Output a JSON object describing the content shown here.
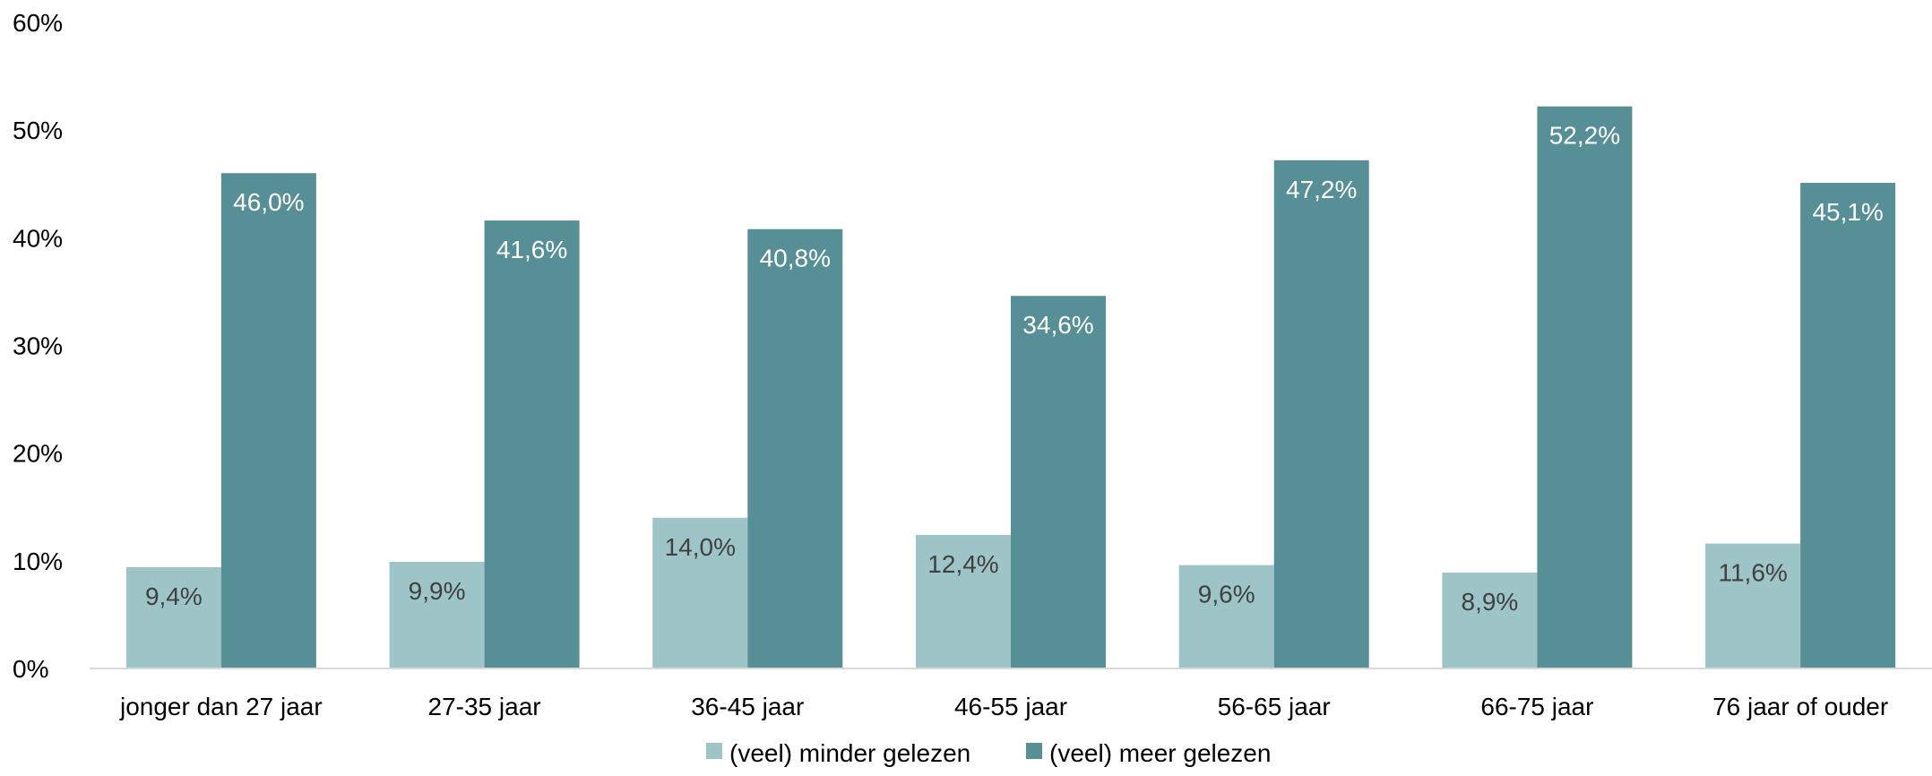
{
  "chart_data": {
    "type": "bar",
    "title": "",
    "xlabel": "",
    "ylabel": "",
    "categories": [
      "jonger dan 27 jaar",
      "27-35 jaar",
      "36-45 jaar",
      "46-55 jaar",
      "56-65 jaar",
      "66-75 jaar",
      "76 jaar of ouder"
    ],
    "series": [
      {
        "name": "(veel) minder gelezen",
        "color": "#9dc4c7",
        "label_color": "#404040",
        "values": [
          9.4,
          9.9,
          14.0,
          12.4,
          9.6,
          8.9,
          11.6
        ],
        "labels": [
          "9,4%",
          "9,9%",
          "14,0%",
          "12,4%",
          "9,6%",
          "8,9%",
          "11,6%"
        ]
      },
      {
        "name": "(veel) meer gelezen",
        "color": "#568f96",
        "label_color": "#ffffff",
        "values": [
          46.0,
          41.6,
          40.8,
          34.6,
          47.2,
          52.2,
          45.1
        ],
        "labels": [
          "46,0%",
          "41,6%",
          "40,8%",
          "34,6%",
          "47,2%",
          "52,2%",
          "45,1%"
        ]
      }
    ],
    "ylim": [
      0,
      60
    ],
    "yticks": [
      0,
      10,
      20,
      30,
      40,
      50,
      60
    ],
    "ytick_labels": [
      "0%",
      "10%",
      "20%",
      "30%",
      "40%",
      "50%",
      "60%"
    ],
    "grid": false,
    "legend_position": "bottom-center",
    "axis_color": "#d9d9d9"
  }
}
